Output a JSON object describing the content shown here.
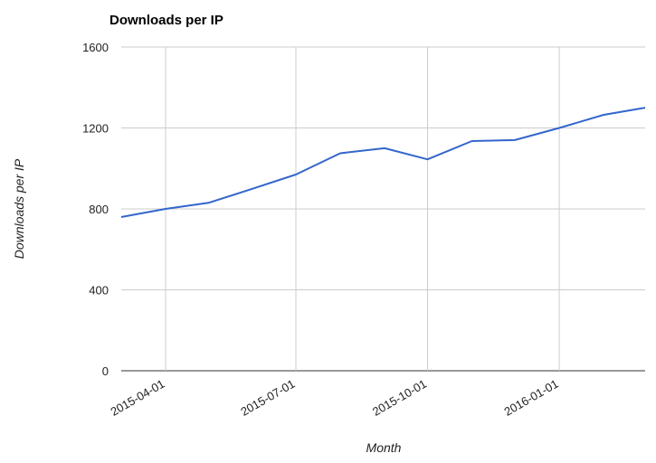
{
  "chart_data": {
    "type": "line",
    "title": "Downloads per IP",
    "xlabel": "Month",
    "ylabel": "Downloads per IP",
    "ylim": [
      0,
      1600
    ],
    "yticks": [
      0,
      400,
      800,
      1200,
      1600
    ],
    "xticks": [
      "2015-04-01",
      "2015-07-01",
      "2015-10-01",
      "2016-01-01"
    ],
    "xlim": [
      "2015-03-01",
      "2016-03-01"
    ],
    "grid": true,
    "legend": "none",
    "line_color": "#3366cc",
    "series": [
      {
        "x": [
          "2015-03-01",
          "2015-04-01",
          "2015-05-01",
          "2015-06-01",
          "2015-07-01",
          "2015-08-01",
          "2015-09-01",
          "2015-10-01",
          "2015-11-01",
          "2015-12-01",
          "2016-01-01",
          "2016-02-01",
          "2016-03-01"
        ],
        "values": [
          760,
          800,
          830,
          900,
          970,
          1075,
          1100,
          1045,
          1135,
          1140,
          1200,
          1265,
          1300
        ]
      }
    ]
  }
}
